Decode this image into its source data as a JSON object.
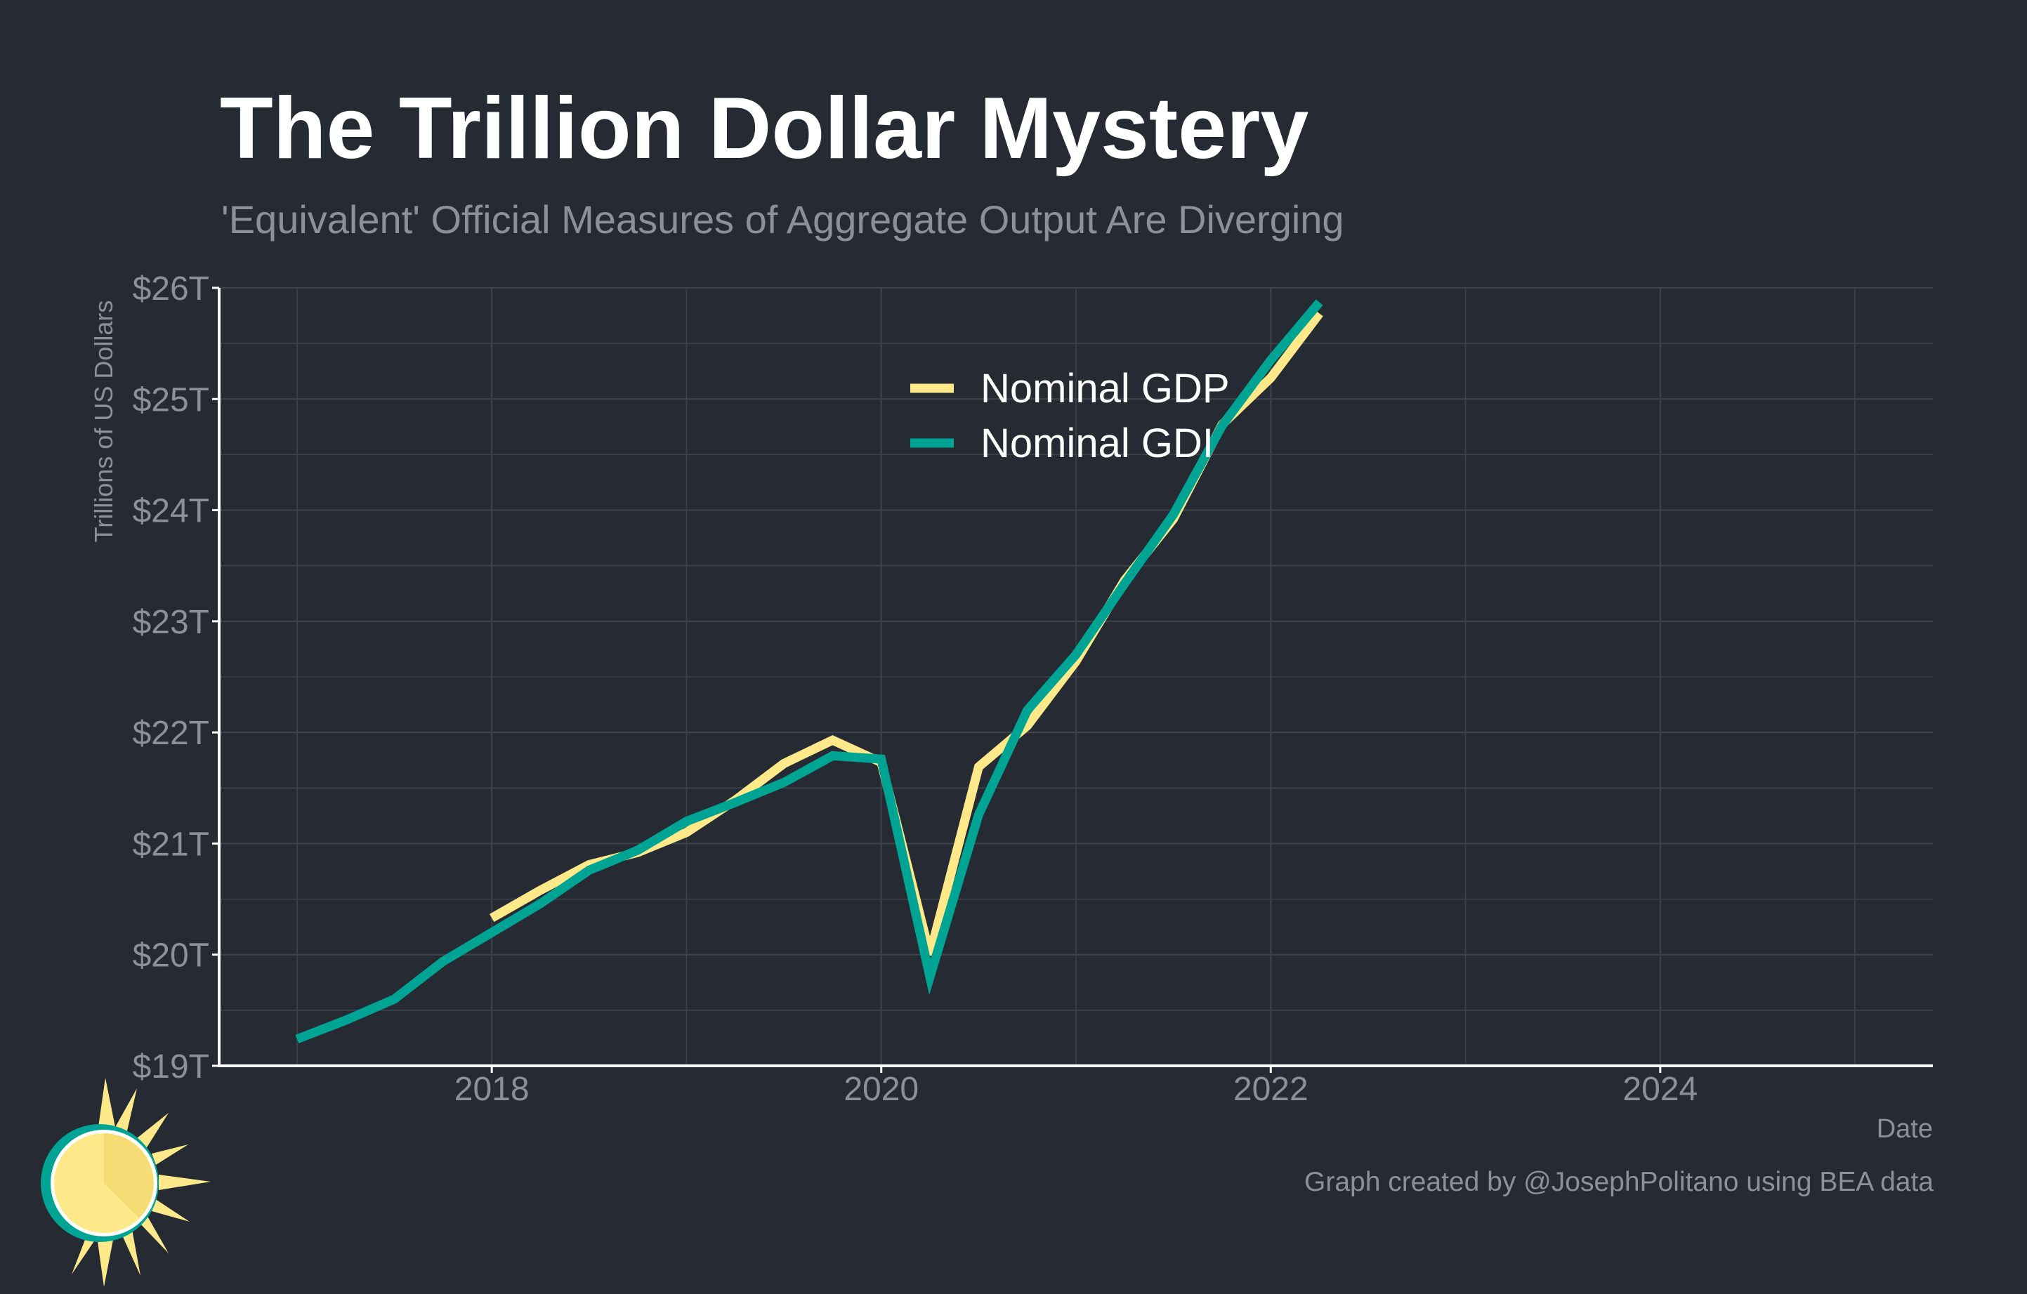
{
  "header": {
    "title": "The Trillion Dollar Mystery",
    "subtitle": "'Equivalent' Official Measures of Aggregate Output Are Diverging"
  },
  "footer": {
    "credit": "Graph created by @JosephPolitano using BEA data"
  },
  "colors": {
    "background": "#252a33",
    "gdp": "#fde98a",
    "gdi": "#00a495",
    "grid": "#3d434c",
    "axis": "#ffffff",
    "tick_text": "#8c9099"
  },
  "logo": {
    "icon": "sun-icon"
  },
  "chart_data": {
    "type": "line",
    "xlabel": "Date",
    "ylabel": "Trillions of US Dollars",
    "xlim": [
      2016.6,
      2025.4
    ],
    "ylim": [
      19,
      26
    ],
    "x_ticks": [
      2018,
      2020,
      2022,
      2024
    ],
    "x_tick_labels": [
      "2018",
      "2020",
      "2022",
      "2024"
    ],
    "y_ticks": [
      19,
      20,
      21,
      22,
      23,
      24,
      25,
      26
    ],
    "y_tick_labels": [
      "$19T",
      "$20T",
      "$21T",
      "$22T",
      "$23T",
      "$24T",
      "$25T",
      "$26T"
    ],
    "grid": true,
    "legend_position": "top-center",
    "series": [
      {
        "name": "Nominal GDP",
        "color": "#fde98a",
        "x": [
          2018.0,
          2018.25,
          2018.5,
          2018.75,
          2019.0,
          2019.25,
          2019.5,
          2019.75,
          2020.0,
          2020.25,
          2020.5,
          2020.75,
          2021.0,
          2021.25,
          2021.5,
          2021.75,
          2022.0,
          2022.25
        ],
        "y": [
          20.33,
          20.58,
          20.81,
          20.92,
          21.1,
          21.39,
          21.72,
          21.93,
          21.73,
          20.0,
          21.69,
          22.06,
          22.64,
          23.37,
          23.92,
          24.77,
          25.19,
          25.77
        ]
      },
      {
        "name": "Nominal GDI",
        "color": "#00a495",
        "x": [
          2017.0,
          2017.25,
          2017.5,
          2017.75,
          2018.0,
          2018.25,
          2018.5,
          2018.75,
          2019.0,
          2019.25,
          2019.5,
          2019.75,
          2020.0,
          2020.25,
          2020.5,
          2020.75,
          2021.0,
          2021.25,
          2021.5,
          2021.75,
          2022.0,
          2022.25
        ],
        "y": [
          19.24,
          19.41,
          19.6,
          19.94,
          20.2,
          20.46,
          20.76,
          20.94,
          21.2,
          21.37,
          21.55,
          21.79,
          21.76,
          19.8,
          21.26,
          22.2,
          22.7,
          23.34,
          23.96,
          24.76,
          25.35,
          25.87
        ]
      }
    ]
  }
}
